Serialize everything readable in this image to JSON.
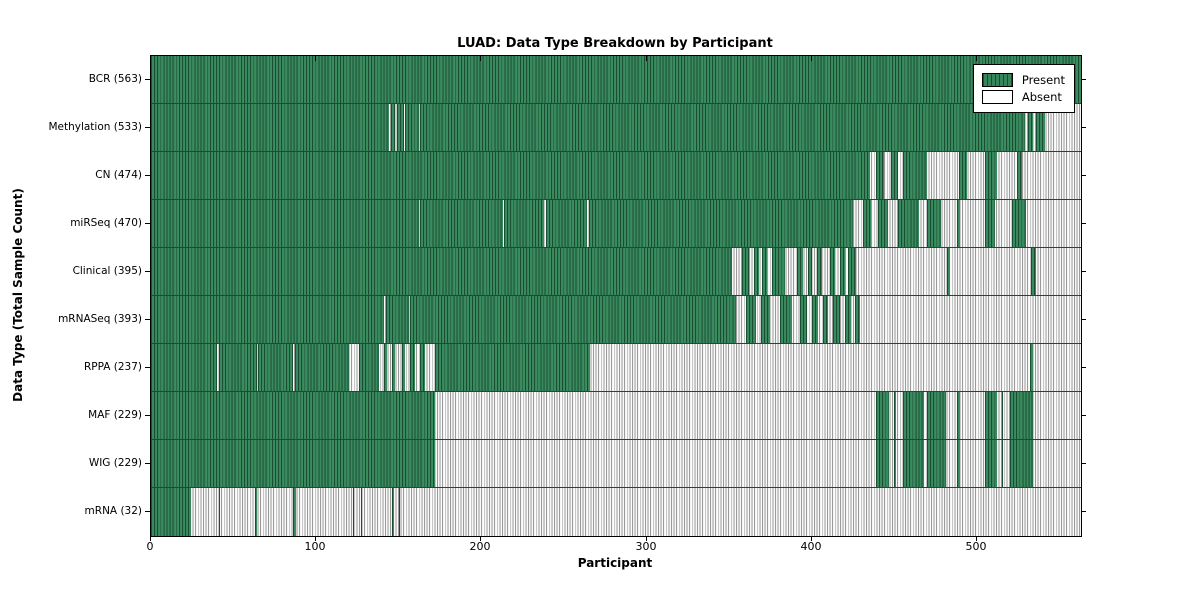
{
  "title": "LUAD: Data Type Breakdown by Participant",
  "xlabel": "Participant",
  "ylabel": "Data Type (Total Sample Count)",
  "legend": {
    "present_label": "Present",
    "absent_label": "Absent"
  },
  "colors": {
    "present_fill": "#35855a",
    "present_edge": "#1b4d33",
    "absent_fill": "#ffffff",
    "absent_edge": "#9a9a9a",
    "axis_border": "#000000"
  },
  "chart_data": {
    "type": "heatmap",
    "subtype": "presence-absence-matrix",
    "title": "LUAD: Data Type Breakdown by Participant",
    "xlabel": "Participant",
    "ylabel": "Data Type (Total Sample Count)",
    "x_max": 563,
    "x_ticks": [
      0,
      100,
      200,
      300,
      400,
      500
    ],
    "legend_entries": [
      "Present",
      "Absent"
    ],
    "legend_position": "upper right",
    "rows": [
      {
        "label": "BCR (563)",
        "data_type": "BCR",
        "count": 563,
        "present_ranges": [
          [
            0,
            563
          ]
        ]
      },
      {
        "label": "Methylation (533)",
        "data_type": "Methylation",
        "count": 533,
        "present_ranges": [
          [
            0,
            144
          ],
          [
            145,
            148
          ],
          [
            149,
            153
          ],
          [
            154,
            162
          ],
          [
            163,
            529
          ],
          [
            531,
            534
          ],
          [
            536,
            541
          ]
        ]
      },
      {
        "label": "CN (474)",
        "data_type": "CN",
        "count": 474,
        "present_ranges": [
          [
            0,
            435
          ],
          [
            439,
            444
          ],
          [
            448,
            452
          ],
          [
            455,
            470
          ],
          [
            489,
            494
          ],
          [
            505,
            512
          ],
          [
            524,
            527
          ]
        ]
      },
      {
        "label": "miRSeq (470)",
        "data_type": "miRSeq",
        "count": 470,
        "present_ranges": [
          [
            0,
            162
          ],
          [
            163,
            213
          ],
          [
            214,
            238
          ],
          [
            239,
            264
          ],
          [
            265,
            425
          ],
          [
            431,
            436
          ],
          [
            440,
            446
          ],
          [
            452,
            465
          ],
          [
            470,
            478
          ],
          [
            488,
            490
          ],
          [
            505,
            511
          ],
          [
            521,
            530
          ]
        ]
      },
      {
        "label": "Clinical (395)",
        "data_type": "Clinical",
        "count": 395,
        "present_ranges": [
          [
            0,
            352
          ],
          [
            358,
            362
          ],
          [
            365,
            368
          ],
          [
            370,
            373
          ],
          [
            376,
            384
          ],
          [
            391,
            395
          ],
          [
            398,
            400
          ],
          [
            403,
            406
          ],
          [
            411,
            414
          ],
          [
            417,
            420
          ],
          [
            422,
            427
          ],
          [
            482,
            484
          ],
          [
            533,
            536
          ]
        ]
      },
      {
        "label": "mRNASeq (393)",
        "data_type": "mRNASeq",
        "count": 393,
        "present_ranges": [
          [
            0,
            141
          ],
          [
            142,
            156
          ],
          [
            157,
            354
          ],
          [
            360,
            366
          ],
          [
            369,
            375
          ],
          [
            381,
            388
          ],
          [
            393,
            397
          ],
          [
            400,
            404
          ],
          [
            407,
            410
          ],
          [
            413,
            417
          ],
          [
            420,
            424
          ],
          [
            426,
            429
          ]
        ]
      },
      {
        "label": "RPPA (237)",
        "data_type": "RPPA",
        "count": 237,
        "present_ranges": [
          [
            0,
            40
          ],
          [
            41,
            64
          ],
          [
            65,
            86
          ],
          [
            87,
            120
          ],
          [
            126,
            138
          ],
          [
            141,
            143
          ],
          [
            146,
            148
          ],
          [
            152,
            154
          ],
          [
            157,
            160
          ],
          [
            163,
            166
          ],
          [
            172,
            266
          ],
          [
            532,
            534
          ]
        ]
      },
      {
        "label": "MAF (229)",
        "data_type": "MAF",
        "count": 229,
        "present_ranges": [
          [
            0,
            172
          ],
          [
            439,
            447
          ],
          [
            450,
            451
          ],
          [
            455,
            468
          ],
          [
            470,
            481
          ],
          [
            488,
            490
          ],
          [
            505,
            512
          ],
          [
            515,
            516
          ],
          [
            520,
            534
          ]
        ]
      },
      {
        "label": "WIG (229)",
        "data_type": "WIG",
        "count": 229,
        "present_ranges": [
          [
            0,
            172
          ],
          [
            439,
            447
          ],
          [
            450,
            451
          ],
          [
            455,
            468
          ],
          [
            470,
            481
          ],
          [
            488,
            490
          ],
          [
            505,
            512
          ],
          [
            515,
            516
          ],
          [
            520,
            534
          ]
        ]
      },
      {
        "label": "mRNA (32)",
        "data_type": "mRNA",
        "count": 32,
        "present_ranges": [
          [
            0,
            24
          ],
          [
            41,
            42
          ],
          [
            63,
            64
          ],
          [
            86,
            88
          ],
          [
            122,
            123
          ],
          [
            127,
            128
          ],
          [
            146,
            147
          ],
          [
            150,
            151
          ]
        ]
      }
    ]
  }
}
